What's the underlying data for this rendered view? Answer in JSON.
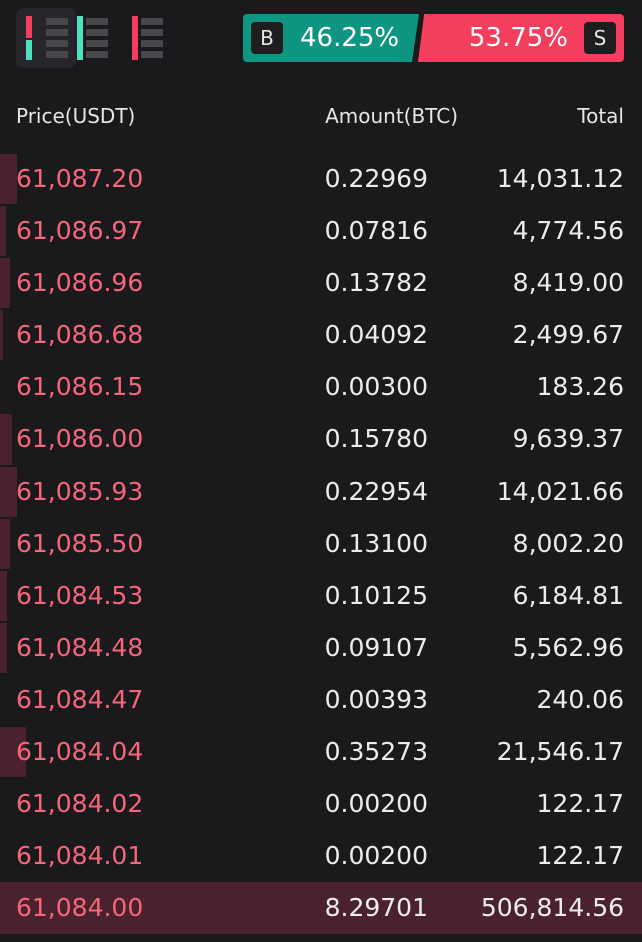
{
  "view_modes": [
    {
      "name": "both",
      "active": true
    },
    {
      "name": "buy-only",
      "active": false
    },
    {
      "name": "sell-only",
      "active": false
    }
  ],
  "ratio": {
    "buy_label": "B",
    "buy_pct": "46.25%",
    "sell_label": "S",
    "sell_pct": "53.75%",
    "buy_color": "#0f9683",
    "sell_color": "#f43e5e"
  },
  "header": {
    "price": "Price(USDT)",
    "amount": "Amount(BTC)",
    "total": "Total"
  },
  "asks": [
    {
      "price": "61,087.20",
      "amount": "0.22969",
      "total": "14,031.12"
    },
    {
      "price": "61,086.97",
      "amount": "0.07816",
      "total": "4,774.56"
    },
    {
      "price": "61,086.96",
      "amount": "0.13782",
      "total": "8,419.00"
    },
    {
      "price": "61,086.68",
      "amount": "0.04092",
      "total": "2,499.67"
    },
    {
      "price": "61,086.15",
      "amount": "0.00300",
      "total": "183.26"
    },
    {
      "price": "61,086.00",
      "amount": "0.15780",
      "total": "9,639.37"
    },
    {
      "price": "61,085.93",
      "amount": "0.22954",
      "total": "14,021.66"
    },
    {
      "price": "61,085.50",
      "amount": "0.13100",
      "total": "8,002.20"
    },
    {
      "price": "61,084.53",
      "amount": "0.10125",
      "total": "6,184.81"
    },
    {
      "price": "61,084.48",
      "amount": "0.09107",
      "total": "5,562.96"
    },
    {
      "price": "61,084.47",
      "amount": "0.00393",
      "total": "240.06"
    },
    {
      "price": "61,084.04",
      "amount": "0.35273",
      "total": "21,546.17"
    },
    {
      "price": "61,084.02",
      "amount": "0.00200",
      "total": "122.17"
    },
    {
      "price": "61,084.01",
      "amount": "0.00200",
      "total": "122.17"
    },
    {
      "price": "61,084.00",
      "amount": "8.29701",
      "total": "506,814.56"
    }
  ]
}
